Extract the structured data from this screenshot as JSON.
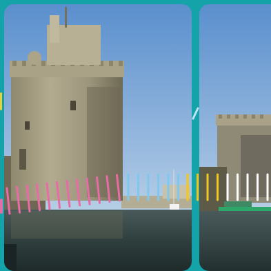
{
  "carousel": {
    "cards": [
      {
        "name": "tower-photo-main"
      },
      {
        "name": "tower-photo-next"
      }
    ]
  },
  "colors": {
    "background": "#14a3a8",
    "sky_top": "#5a8fcd",
    "sky_bottom": "#a8c6e3",
    "water": "#2d3f42",
    "stone": "#a49c80"
  },
  "decorations": {
    "dash_colors": [
      "#e86ba6",
      "#7fc8ec",
      "#f2c81e",
      "#ffffff"
    ]
  }
}
